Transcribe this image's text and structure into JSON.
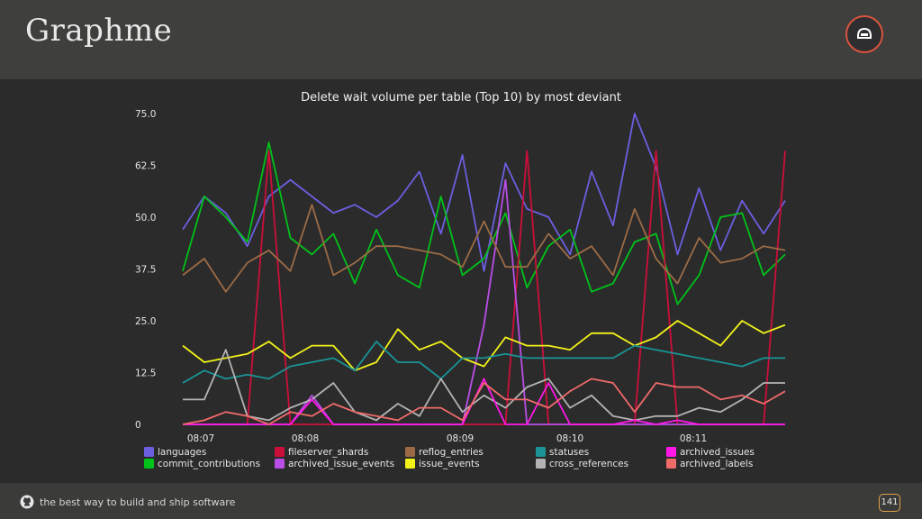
{
  "header": {
    "title": "Graphme",
    "logo_icon": "octocat-helmet-icon"
  },
  "footer": {
    "tagline": "the best way to build and ship software",
    "page_number": "141",
    "icon": "github-icon"
  },
  "chart_data": {
    "type": "line",
    "title": "Delete wait volume per table (Top 10) by most deviant",
    "xlabel": "",
    "ylabel": "",
    "ylim": [
      0,
      75
    ],
    "yticks": [
      0,
      12.5,
      25.0,
      37.5,
      50.0,
      62.5,
      75.0
    ],
    "ytick_labels": [
      "0",
      "12.5",
      "25.0",
      "37.5",
      "50.0",
      "62.5",
      "75.0"
    ],
    "xticks": [
      "08:07",
      "08:08",
      "08:09",
      "08:10",
      "08:11"
    ],
    "legend_position": "bottom",
    "series": [
      {
        "name": "languages",
        "color": "#6b5fe0",
        "values": [
          47,
          55,
          51,
          43,
          55,
          59,
          55,
          51,
          53,
          50,
          54,
          61,
          46,
          65,
          37,
          63,
          52,
          50,
          41,
          61,
          48,
          75,
          62,
          41,
          57,
          42,
          54,
          46,
          54
        ]
      },
      {
        "name": "commit_contributions",
        "color": "#00c21a",
        "values": [
          37,
          55,
          50,
          44,
          68,
          45,
          41,
          46,
          34,
          47,
          36,
          33,
          55,
          36,
          40,
          51,
          33,
          43,
          47,
          32,
          34,
          44,
          46,
          29,
          36,
          50,
          51,
          36,
          41
        ]
      },
      {
        "name": "fileserver_shards",
        "color": "#cc0f3a",
        "values": [
          0,
          0,
          0,
          0,
          66,
          0,
          0,
          0,
          0,
          0,
          0,
          0,
          0,
          0,
          0,
          0,
          66,
          0,
          0,
          0,
          0,
          0,
          66,
          0,
          0,
          0,
          0,
          0,
          66
        ]
      },
      {
        "name": "archived_issue_events",
        "color": "#b94ee6",
        "values": [
          0,
          0,
          0,
          0,
          0,
          0,
          7,
          0,
          0,
          0,
          0,
          0,
          0,
          0,
          24,
          59,
          0,
          0,
          0,
          0,
          0,
          0,
          0,
          0,
          0,
          0,
          0,
          0,
          0
        ]
      },
      {
        "name": "reflog_entries",
        "color": "#9c6b46",
        "values": [
          36,
          40,
          32,
          39,
          42,
          37,
          53,
          36,
          39,
          43,
          43,
          42,
          41,
          38,
          49,
          38,
          38,
          46,
          40,
          43,
          36,
          52,
          40,
          34,
          45,
          39,
          40,
          43,
          42
        ]
      },
      {
        "name": "issue_events",
        "color": "#f2f21a",
        "values": [
          19,
          15,
          16,
          17,
          20,
          16,
          19,
          19,
          13,
          15,
          23,
          18,
          20,
          16,
          14,
          21,
          19,
          19,
          18,
          22,
          22,
          19,
          21,
          25,
          22,
          19,
          25,
          22,
          24
        ]
      },
      {
        "name": "statuses",
        "color": "#1a9496",
        "values": [
          10,
          13,
          11,
          12,
          11,
          14,
          15,
          16,
          13,
          20,
          15,
          15,
          11,
          16,
          16,
          17,
          16,
          16,
          16,
          16,
          16,
          19,
          18,
          17,
          16,
          15,
          14,
          16,
          16
        ]
      },
      {
        "name": "cross_references",
        "color": "#b3b3b3",
        "values": [
          6,
          6,
          18,
          2,
          1,
          4,
          6,
          10,
          3,
          1,
          5,
          2,
          11,
          3,
          7,
          4,
          9,
          11,
          4,
          7,
          2,
          1,
          2,
          2,
          4,
          3,
          6,
          10,
          10
        ]
      },
      {
        "name": "archived_issues",
        "color": "#ff17e8",
        "values": [
          0,
          0,
          0,
          0,
          0,
          0,
          6,
          0,
          0,
          0,
          0,
          0,
          0,
          0,
          11,
          0,
          0,
          10,
          0,
          0,
          0,
          1,
          0,
          1,
          0,
          0,
          0,
          0,
          0
        ]
      },
      {
        "name": "archived_labels",
        "color": "#f06a6a",
        "values": [
          0,
          1,
          3,
          2,
          0,
          3,
          2,
          5,
          3,
          2,
          1,
          4,
          4,
          1,
          10,
          6,
          6,
          4,
          8,
          11,
          10,
          3,
          10,
          9,
          9,
          6,
          7,
          5,
          8
        ]
      }
    ]
  }
}
